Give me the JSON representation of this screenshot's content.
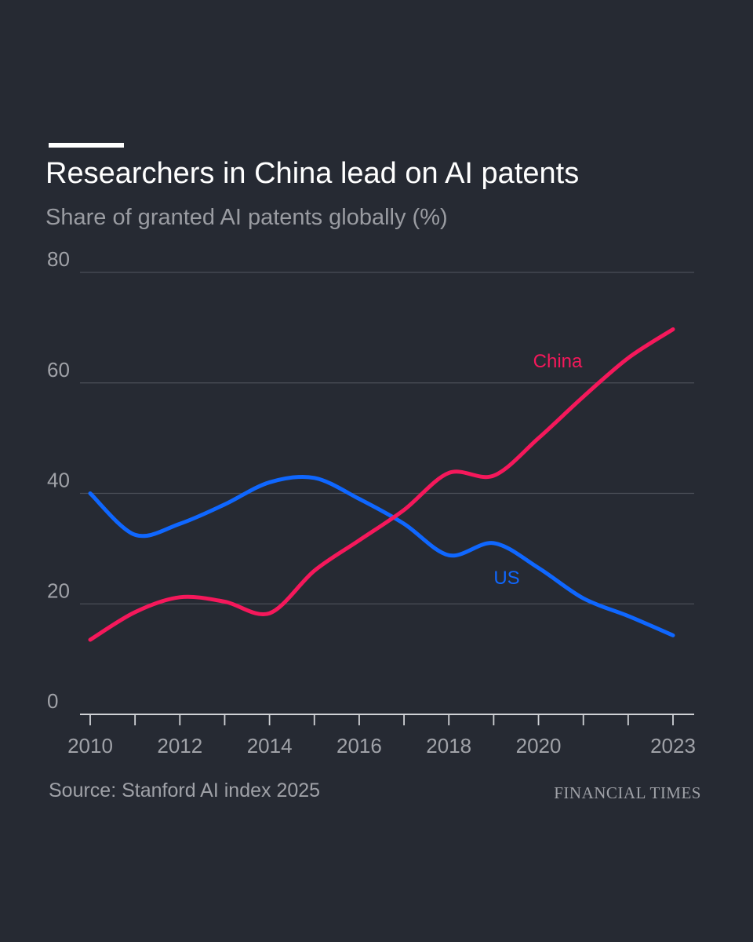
{
  "header": {
    "title": "Researchers in China lead on AI patents",
    "subtitle": "Share of granted AI patents globally (%)"
  },
  "footer": {
    "source": "Source: Stanford AI index 2025",
    "brand": "FINANCIAL TIMES"
  },
  "colors": {
    "background": "#262a33",
    "china": "#f5185b",
    "us": "#0f67ff",
    "grid": "#4a4e57",
    "axis": "#d0d2d6"
  },
  "chart_data": {
    "type": "line",
    "x": [
      2010,
      2011,
      2012,
      2013,
      2014,
      2015,
      2016,
      2017,
      2018,
      2019,
      2020,
      2021,
      2022,
      2023
    ],
    "x_tick_labels": [
      "2010",
      "2012",
      "2014",
      "2016",
      "2018",
      "2020",
      "2023"
    ],
    "y_tick_labels": [
      "0",
      "20",
      "40",
      "60",
      "80"
    ],
    "ylim": [
      0,
      80
    ],
    "xlim": [
      2010,
      2023
    ],
    "grid": true,
    "series": [
      {
        "name": "China",
        "color": "#f5185b",
        "values": [
          13.5,
          18.5,
          21.2,
          20.4,
          18.3,
          26.0,
          31.5,
          37.0,
          43.7,
          43.2,
          50.0,
          57.5,
          64.5,
          69.7
        ]
      },
      {
        "name": "US",
        "color": "#0f67ff",
        "values": [
          40.0,
          32.5,
          34.5,
          38.0,
          42.0,
          42.8,
          39.0,
          34.5,
          28.8,
          31.0,
          26.5,
          21.0,
          17.8,
          14.3
        ]
      }
    ]
  }
}
